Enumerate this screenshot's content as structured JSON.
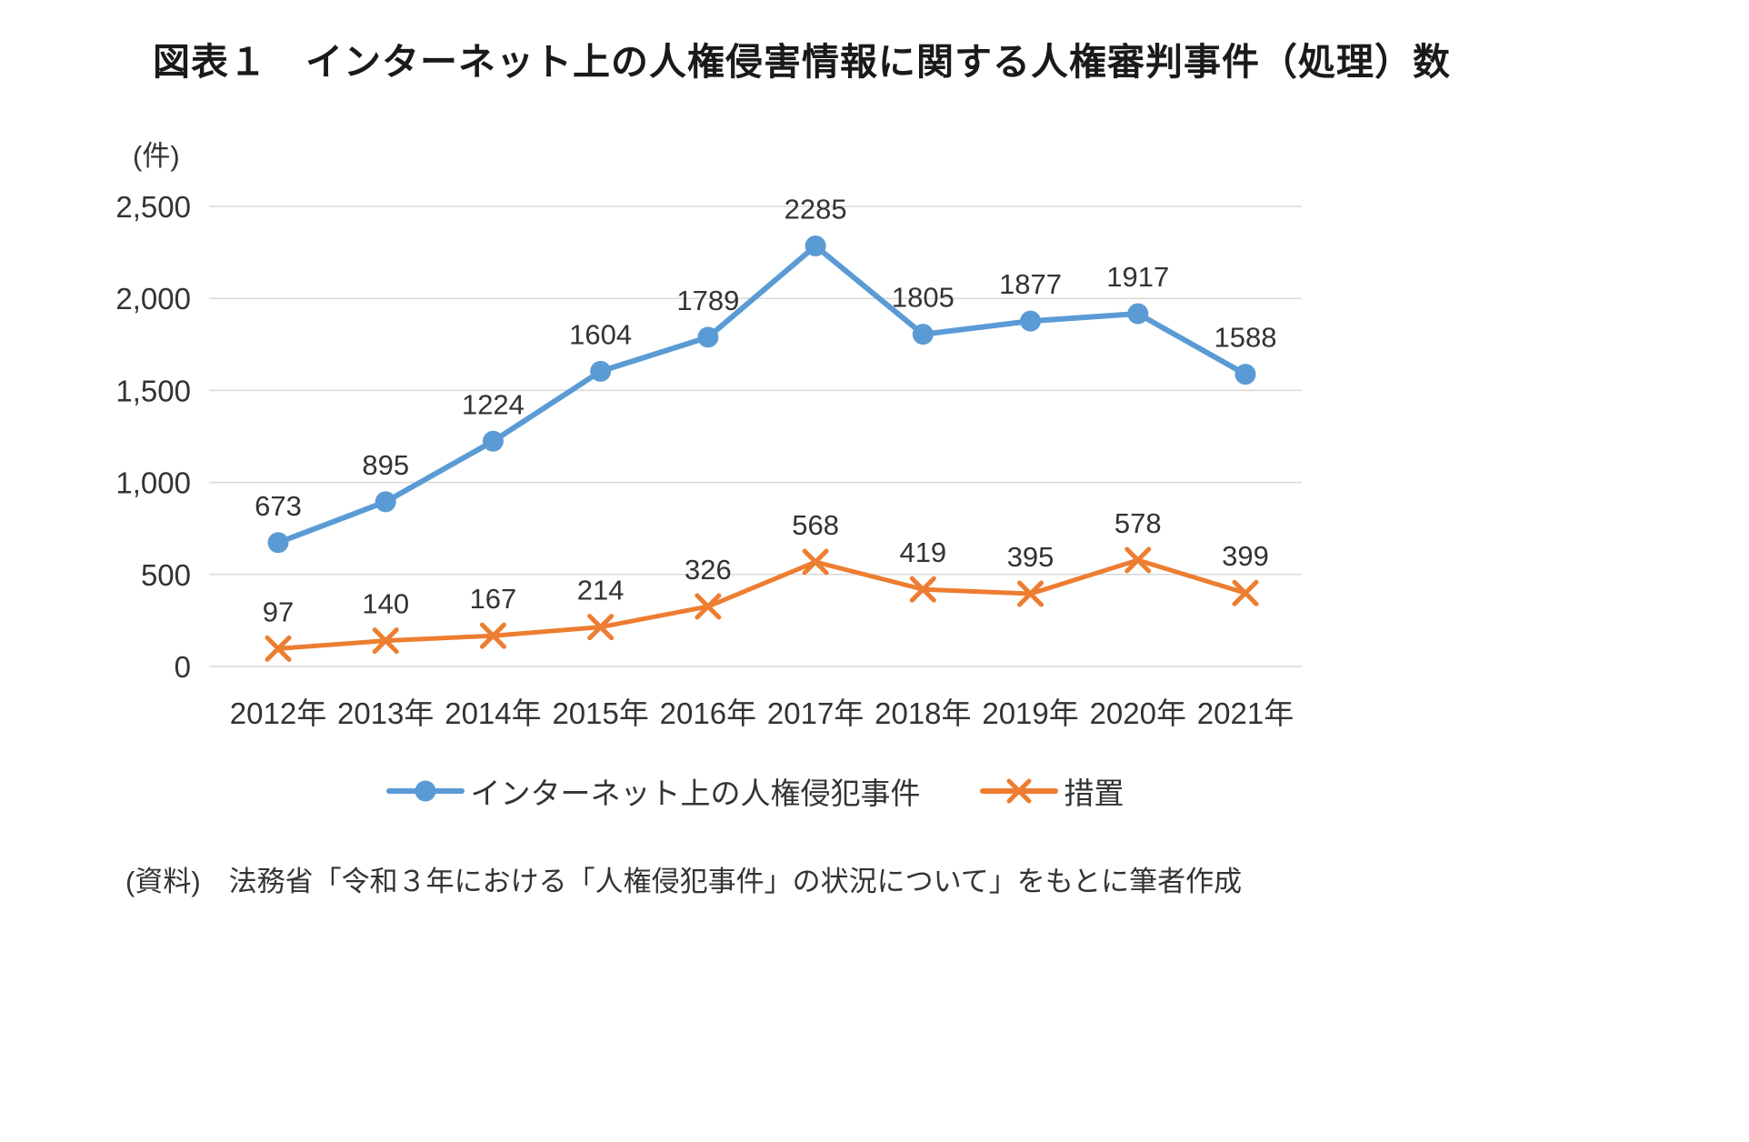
{
  "title": "図表１　インターネット上の人権侵害情報に関する人権審判事件（処理）数",
  "unit_label": "(件)",
  "source": "(資料)　法務省「令和３年における「人権侵犯事件」の状況について」をもとに筆者作成",
  "colors": {
    "series1": "#5B9BD5",
    "series2": "#ED7D31",
    "grid": "#D9D9D9",
    "text": "#333333"
  },
  "chart_data": {
    "type": "line",
    "categories": [
      "2012年",
      "2013年",
      "2014年",
      "2015年",
      "2016年",
      "2017年",
      "2018年",
      "2019年",
      "2020年",
      "2021年"
    ],
    "series": [
      {
        "name": "インターネット上の人権侵犯事件",
        "marker": "circle",
        "color": "#5B9BD5",
        "values": [
          673,
          895,
          1224,
          1604,
          1789,
          2285,
          1805,
          1877,
          1917,
          1588
        ]
      },
      {
        "name": "措置",
        "marker": "x",
        "color": "#ED7D31",
        "values": [
          97,
          140,
          167,
          214,
          326,
          568,
          419,
          395,
          578,
          399
        ]
      }
    ],
    "title": "図表１　インターネット上の人権侵害情報に関する人権審判事件（処理）数",
    "xlabel": "",
    "ylabel": "(件)",
    "ylim": [
      0,
      2500
    ],
    "ytick_step": 500,
    "ytick_labels": [
      "0",
      "500",
      "1,000",
      "1,500",
      "2,000",
      "2,500"
    ],
    "grid": true,
    "legend_position": "bottom",
    "data_labels": true
  }
}
